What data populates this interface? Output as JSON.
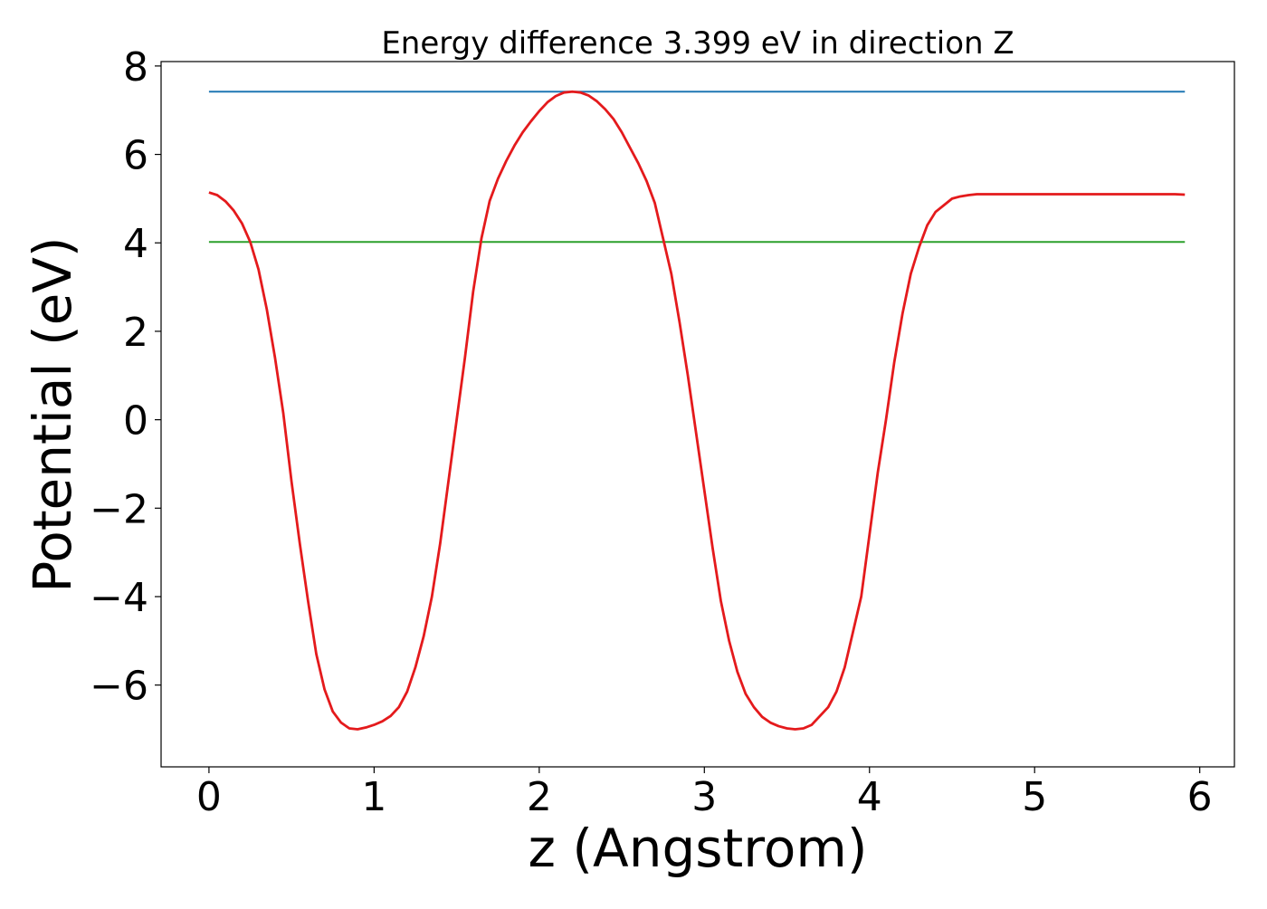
{
  "chart_data": {
    "type": "line",
    "title": "Energy difference 3.399 eV in direction Z",
    "xlabel": "z (Angstrom)",
    "ylabel": "Potential (eV)",
    "xlim": [
      -0.29,
      6.21
    ],
    "ylim": [
      -7.85,
      8.1
    ],
    "xticks": [
      0,
      1,
      2,
      3,
      4,
      5,
      6
    ],
    "yticks": [
      -6,
      -4,
      -2,
      0,
      2,
      4,
      6,
      8
    ],
    "grid": false,
    "colors": {
      "potential": "#e41a1c",
      "upper_level": "#1f77b4",
      "lower_level": "#2ca02c"
    },
    "series": [
      {
        "key": "upper_level",
        "x": [
          0,
          5.91
        ],
        "y": [
          7.42,
          7.42
        ]
      },
      {
        "key": "lower_level",
        "x": [
          0,
          5.91
        ],
        "y": [
          4.02,
          4.02
        ]
      },
      {
        "key": "potential",
        "x": [
          0,
          0.05,
          0.1,
          0.15,
          0.2,
          0.25,
          0.3,
          0.35,
          0.4,
          0.45,
          0.5,
          0.55,
          0.6,
          0.65,
          0.7,
          0.75,
          0.8,
          0.85,
          0.9,
          0.95,
          1.0,
          1.05,
          1.1,
          1.15,
          1.2,
          1.25,
          1.3,
          1.35,
          1.4,
          1.45,
          1.5,
          1.55,
          1.6,
          1.65,
          1.7,
          1.75,
          1.8,
          1.85,
          1.9,
          1.95,
          2.0,
          2.05,
          2.1,
          2.15,
          2.2,
          2.25,
          2.3,
          2.35,
          2.4,
          2.45,
          2.5,
          2.55,
          2.6,
          2.65,
          2.7,
          2.75,
          2.8,
          2.85,
          2.9,
          2.95,
          3.0,
          3.05,
          3.1,
          3.15,
          3.2,
          3.25,
          3.3,
          3.35,
          3.4,
          3.45,
          3.5,
          3.55,
          3.6,
          3.65,
          3.7,
          3.75,
          3.8,
          3.85,
          3.9,
          3.95,
          4.0,
          4.05,
          4.1,
          4.15,
          4.2,
          4.25,
          4.3,
          4.35,
          4.4,
          4.45,
          4.5,
          4.55,
          4.6,
          4.65,
          4.7,
          4.75,
          4.8,
          4.85,
          4.9,
          4.95,
          5.0,
          5.05,
          5.1,
          5.15,
          5.2,
          5.25,
          5.3,
          5.35,
          5.4,
          5.45,
          5.5,
          5.55,
          5.6,
          5.65,
          5.7,
          5.75,
          5.8,
          5.85,
          5.91
        ],
        "y": [
          5.14,
          5.08,
          4.94,
          4.73,
          4.44,
          4.02,
          3.4,
          2.5,
          1.4,
          0.15,
          -1.4,
          -2.8,
          -4.1,
          -5.3,
          -6.1,
          -6.6,
          -6.85,
          -6.98,
          -7.0,
          -6.96,
          -6.9,
          -6.82,
          -6.7,
          -6.5,
          -6.15,
          -5.6,
          -4.9,
          -4.0,
          -2.8,
          -1.4,
          0.0,
          1.4,
          2.9,
          4.1,
          4.95,
          5.45,
          5.85,
          6.2,
          6.5,
          6.75,
          6.98,
          7.18,
          7.32,
          7.4,
          7.42,
          7.4,
          7.33,
          7.2,
          7.02,
          6.8,
          6.5,
          6.15,
          5.8,
          5.4,
          4.9,
          4.1,
          3.3,
          2.2,
          1.0,
          -0.3,
          -1.6,
          -2.9,
          -4.1,
          -5.0,
          -5.7,
          -6.2,
          -6.5,
          -6.72,
          -6.85,
          -6.93,
          -6.98,
          -7.0,
          -6.98,
          -6.9,
          -6.7,
          -6.5,
          -6.15,
          -5.6,
          -4.8,
          -4.0,
          -2.6,
          -1.2,
          0.0,
          1.3,
          2.4,
          3.3,
          3.9,
          4.4,
          4.7,
          4.85,
          5.0,
          5.05,
          5.08,
          5.1,
          5.1,
          5.1,
          5.1,
          5.1,
          5.1,
          5.1,
          5.1,
          5.1,
          5.1,
          5.1,
          5.1,
          5.1,
          5.1,
          5.1,
          5.1,
          5.1,
          5.1,
          5.1,
          5.1,
          5.1,
          5.1,
          5.1,
          5.1,
          5.1,
          5.09
        ]
      }
    ]
  }
}
